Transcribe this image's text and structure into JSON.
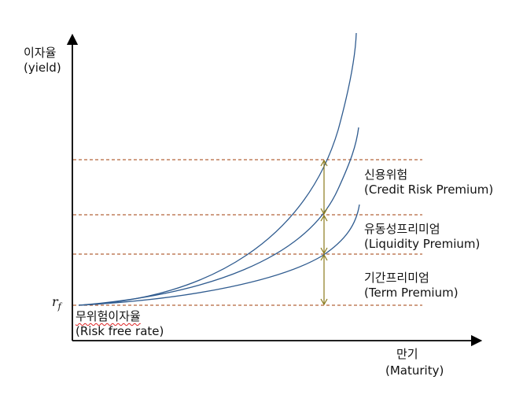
{
  "y_axis": {
    "label_ko": "이자율",
    "label_en": "(yield)"
  },
  "x_axis": {
    "label_ko": "만기",
    "label_en": "(Maturity)"
  },
  "rf_symbol": {
    "base": "r",
    "sub": "f"
  },
  "risk_free": {
    "label_ko": "무위험이자율",
    "label_en": "(Risk free rate)"
  },
  "premiums": [
    {
      "ko": "신용위험",
      "en": "(Credit Risk Premium)"
    },
    {
      "ko": "유동성프리미엄",
      "en": "(Liquidity Premium)"
    },
    {
      "ko": "기간프리미엄",
      "en": "(Term Premium)"
    }
  ],
  "colors": {
    "curve": "#2f5b8f",
    "dashed": "#b5643a",
    "arrow": "#8a7a1c",
    "axis": "#000000"
  }
}
